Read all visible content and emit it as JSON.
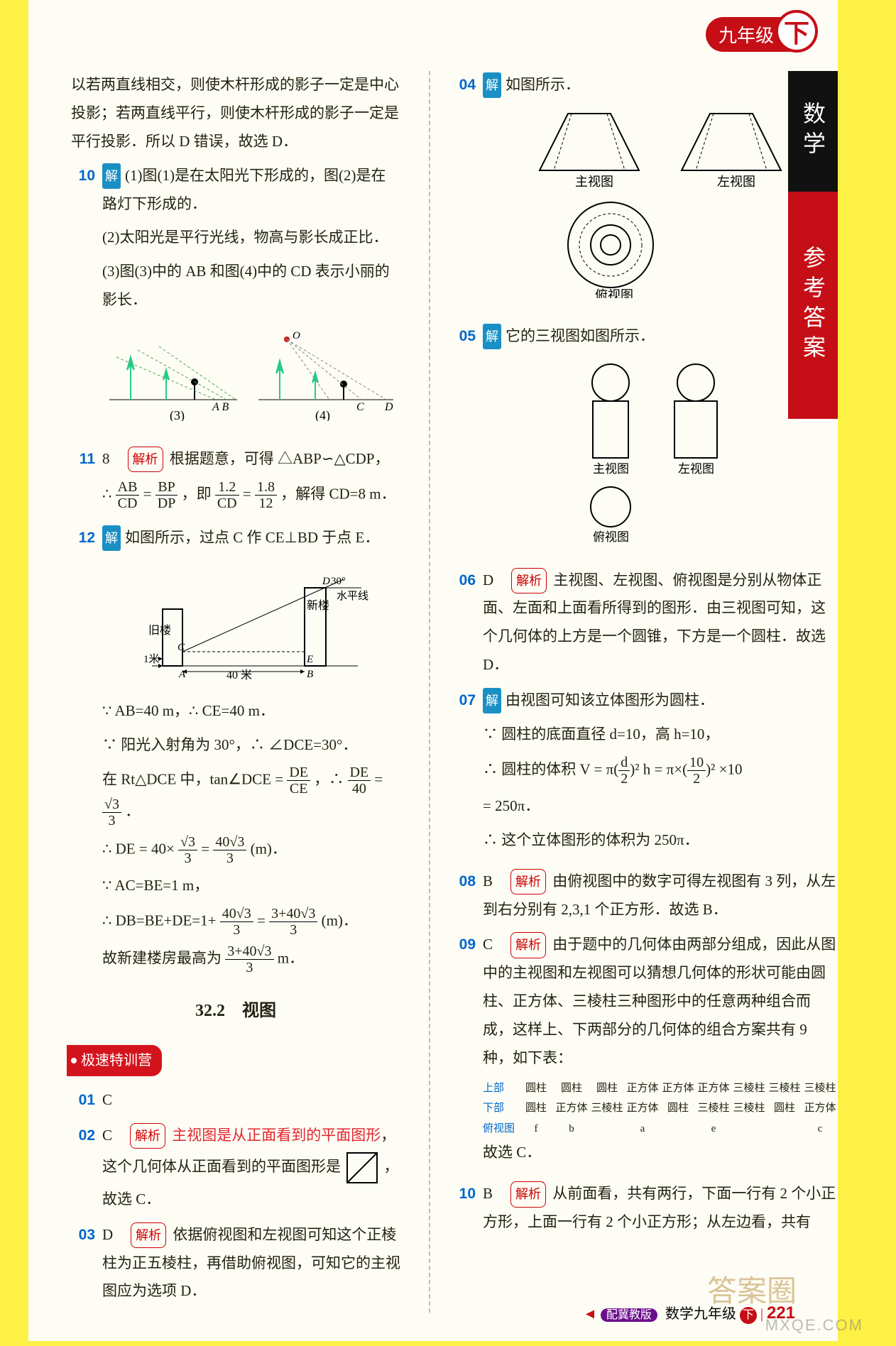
{
  "header": {
    "grade": "九年级",
    "vol": "下",
    "tab_black": "数学",
    "tab_red": "参考答案"
  },
  "left": {
    "intro": "以若两直线相交，则使木杆形成的影子一定是中心投影；若两直线平行，则使木杆形成的影子一定是平行投影．所以 D 错误，故选 D．",
    "q10_n": "10",
    "q10_1": "(1)图(1)是在太阳光下形成的，图(2)是在路灯下形成的．",
    "q10_2": "(2)太阳光是平行光线，物高与影长成正比．",
    "q10_3": "(3)图(3)中的 AB 和图(4)中的 CD 表示小丽的影长．",
    "fig34_3": "(3)",
    "fig34_4": "(4)",
    "q11_n": "11",
    "q11_ans": "8",
    "q11_a": "根据题意，可得 △ABP∽△CDP，",
    "q11_b_pre": "∴ ",
    "q11_b_f1t": "AB",
    "q11_b_f1b": "CD",
    "q11_b_eq": " = ",
    "q11_b_f2t": "BP",
    "q11_b_f2b": "DP",
    "q11_b_mid": "，即 ",
    "q11_b_f3t": "1.2",
    "q11_b_f3b": "CD",
    "q11_b_f4t": "1.8",
    "q11_b_f4b": "12",
    "q11_b_post": "，解得 CD=8 m．",
    "q12_n": "12",
    "q12_intro": "如图所示，过点 C 作 CE⊥BD 于点 E．",
    "fig12_old": "旧楼",
    "fig12_new": "新楼",
    "fig12_hl": "水平线",
    "fig12_1m": "1米",
    "fig12_40m": "40 米",
    "fig12_30": "30°",
    "fig12_A": "A",
    "fig12_B": "B",
    "fig12_C": "C",
    "fig12_D": "D",
    "fig12_E": "E",
    "q12_l1": "∵ AB=40 m，∴ CE=40 m．",
    "q12_l2": "∵ 阳光入射角为 30°，∴ ∠DCE=30°．",
    "q12_l3_pre": "在 Rt△DCE 中，tan∠DCE = ",
    "q12_l3_f1t": "DE",
    "q12_l3_f1b": "CE",
    "q12_l3_mid": "，∴ ",
    "q12_l3_f2t": "DE",
    "q12_l3_f2b": "40",
    "q12_l3_eq": " = ",
    "q12_l3_f3t": "√3",
    "q12_l3_f3b": "3",
    "q12_l3_post": "．",
    "q12_l4_pre": "∴ DE = 40×",
    "q12_l4_f1t": "√3",
    "q12_l4_f1b": "3",
    "q12_l4_eq": " = ",
    "q12_l4_f2t": "40√3",
    "q12_l4_f2b": "3",
    "q12_l4_post": "(m)．",
    "q12_l5": "∵ AC=BE=1 m，",
    "q12_l6_pre": "∴ DB=BE+DE=1+",
    "q12_l6_f1t": "40√3",
    "q12_l6_f1b": "3",
    "q12_l6_eq": " = ",
    "q12_l6_f2t": "3+40√3",
    "q12_l6_f2b": "3",
    "q12_l6_post": "(m)．",
    "q12_l7_pre": "故新建楼房最高为 ",
    "q12_l7_f1t": "3+40√3",
    "q12_l7_f1b": "3",
    "q12_l7_post": " m．",
    "section": "32.2　视图",
    "badge": "极速特训营",
    "s01_n": "01",
    "s01": "C",
    "s02_n": "02",
    "s02_a": "C",
    "s02_hi": "主视图是从正面看到的平面图形",
    "s02_b": "，这个几何体从正面看到的平面图形是 ",
    "s02_c": "，故选 C．",
    "s03_n": "03",
    "s03_a": "D",
    "s03_b": "依据俯视图和左视图可知这个正棱柱为正五棱柱，再借助俯视图，可知它的主视图应为选项 D．",
    "jiexi_label": "解析",
    "jie_label": "解"
  },
  "right": {
    "q04_n": "04",
    "q04": "如图所示．",
    "v_main": "主视图",
    "v_left": "左视图",
    "v_top": "俯视图",
    "q05_n": "05",
    "q05": "它的三视图如图所示．",
    "q06_n": "06",
    "q06_a": "D",
    "q06_b": "主视图、左视图、俯视图是分别从物体正面、左面和上面看所得到的图形．由三视图可知，这个几何体的上方是一个圆锥，下方是一个圆柱．故选 D．",
    "q07_n": "07",
    "q07_a": "由视图可知该立体图形为圆柱．",
    "q07_b": "∵ 圆柱的底面直径 d=10，高 h=10，",
    "q07_c_pre": "∴ 圆柱的体积 V = π",
    "q07_c_f1t": "d",
    "q07_c_f1b": "2",
    "q07_c_sq": ")² h = π×(",
    "q07_c_f2t": "10",
    "q07_c_f2b": "2",
    "q07_c_post": ")² ×10",
    "q07_d": "= 250π．",
    "q07_e": "∴ 这个立体图形的体积为 250π．",
    "q08_n": "08",
    "q08_a": "B",
    "q08_b": "由俯视图中的数字可得左视图有 3 列，从左到右分别有 2,3,1 个正方形．故选 B．",
    "q09_n": "09",
    "q09_a": "C",
    "q09_b": "由于题中的几何体由两部分组成，因此从图中的主视图和左视图可以猜想几何体的形状可能由圆柱、正方体、三棱柱三种图形中的任意两种组合而成，这样上、下两部分的几何体的组合方案共有 9 种，如下表：",
    "tbl_upper": "上部",
    "tbl_lower": "下部",
    "tbl_top": "俯视图",
    "tbl_r1": [
      "圆柱",
      "圆柱",
      "圆柱",
      "正方体",
      "正方体",
      "正方体",
      "三棱柱",
      "三棱柱",
      "三棱柱"
    ],
    "tbl_r2": [
      "圆柱",
      "正方体",
      "三棱柱",
      "正方体",
      "圆柱",
      "三棱柱",
      "三棱柱",
      "圆柱",
      "正方体"
    ],
    "tbl_r3": [
      "f",
      "b",
      "",
      "a",
      "",
      "e",
      "",
      "",
      "c"
    ],
    "q09_c": "故选 C．",
    "q10_n": "10",
    "q10_a": "B",
    "q10_b": "从前面看，共有两行，下面一行有 2 个小正方形，上面一行有 2 个小正方形；从左边看，共有"
  },
  "footer": {
    "arrow": "◄",
    "pill": "配冀教版",
    "label": "数学九年级",
    "vol": "下",
    "page": "221"
  },
  "watermark": {
    "cn": "答案圈",
    "en": "MXQE.COM"
  }
}
